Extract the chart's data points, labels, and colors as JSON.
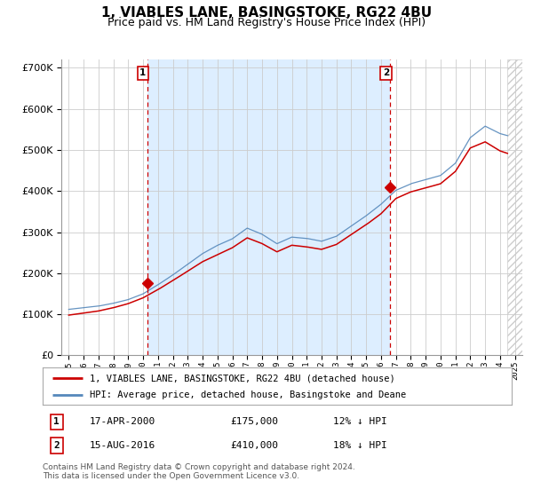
{
  "title": "1, VIABLES LANE, BASINGSTOKE, RG22 4BU",
  "subtitle": "Price paid vs. HM Land Registry's House Price Index (HPI)",
  "title_fontsize": 11,
  "subtitle_fontsize": 9,
  "legend_line1": "1, VIABLES LANE, BASINGSTOKE, RG22 4BU (detached house)",
  "legend_line2": "HPI: Average price, detached house, Basingstoke and Deane",
  "sale1_label": "1",
  "sale1_date": "17-APR-2000",
  "sale1_price": "£175,000",
  "sale1_hpi": "12% ↓ HPI",
  "sale1_year": 2000.29,
  "sale1_value": 175000,
  "sale2_label": "2",
  "sale2_date": "15-AUG-2016",
  "sale2_price": "£410,000",
  "sale2_hpi": "18% ↓ HPI",
  "sale2_year": 2016.62,
  "sale2_value": 410000,
  "price_color": "#cc0000",
  "hpi_color": "#5588bb",
  "shade_color": "#ddeeff",
  "hatch_color": "#cccccc",
  "background_color": "#ffffff",
  "grid_color": "#cccccc",
  "ylim": [
    0,
    720000
  ],
  "yticks": [
    0,
    100000,
    200000,
    300000,
    400000,
    500000,
    600000,
    700000
  ],
  "xlim_start": 1994.5,
  "xlim_end": 2025.5,
  "last_data_year": 2024.5,
  "footer": "Contains HM Land Registry data © Crown copyright and database right 2024.\nThis data is licensed under the Open Government Licence v3.0."
}
